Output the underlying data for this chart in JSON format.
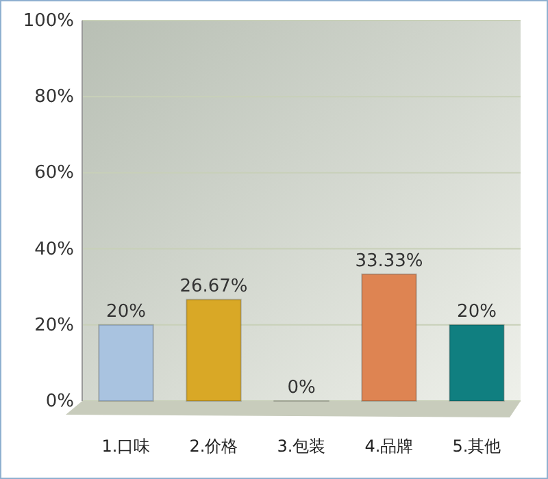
{
  "chart_data": {
    "type": "bar",
    "categories": [
      "1.口味",
      "2.价格",
      "3.包装",
      "4.品牌",
      "5.其他"
    ],
    "values": [
      20,
      26.67,
      0,
      33.33,
      20
    ],
    "colors": [
      "#a9c3e0",
      "#d9a826",
      "#9cc23a",
      "#de8452",
      "#107f80"
    ],
    "value_labels": [
      "20%",
      "26.67%",
      "0%",
      "33.33%",
      "20%"
    ],
    "ylim": [
      0,
      100
    ],
    "yticks": [
      {
        "value": 0,
        "label": "0%"
      },
      {
        "value": 20,
        "label": "20%"
      },
      {
        "value": 40,
        "label": "40%"
      },
      {
        "value": 60,
        "label": "60%"
      },
      {
        "value": 80,
        "label": "80%"
      },
      {
        "value": 100,
        "label": "100%"
      }
    ],
    "grid": "y"
  }
}
